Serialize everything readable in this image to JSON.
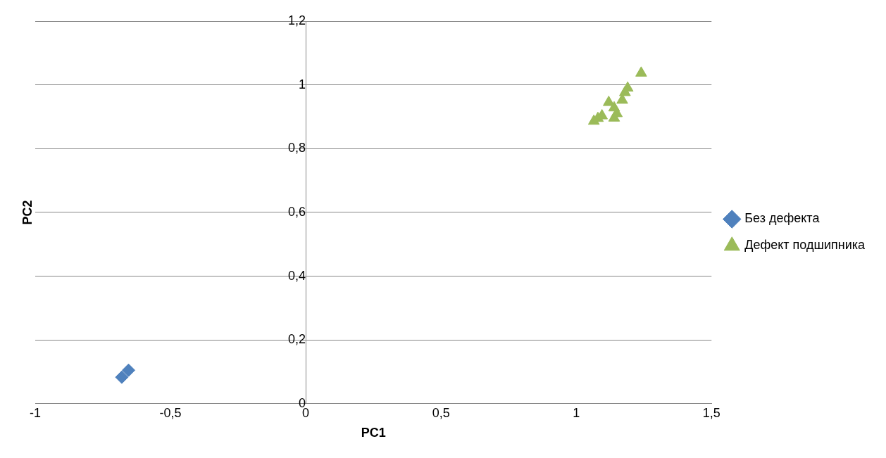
{
  "chart_data": {
    "type": "scatter",
    "xlabel": "PC1",
    "ylabel": "PC2",
    "xlim": [
      -1,
      1.5
    ],
    "xticks": [
      {
        "value": -1,
        "label": "-1"
      },
      {
        "value": -0.5,
        "label": "-0,5"
      },
      {
        "value": 0,
        "label": "0"
      },
      {
        "value": 0.5,
        "label": "0,5"
      },
      {
        "value": 1,
        "label": "1"
      },
      {
        "value": 1.5,
        "label": "1,5"
      }
    ],
    "ylim": [
      0,
      1.2
    ],
    "yticks": [
      {
        "value": 0,
        "label": "0"
      },
      {
        "value": 0.2,
        "label": "0,2"
      },
      {
        "value": 0.4,
        "label": "0,4"
      },
      {
        "value": 0.6,
        "label": "0,6"
      },
      {
        "value": 0.8,
        "label": "0,8"
      },
      {
        "value": 1,
        "label": "1"
      },
      {
        "value": 1.2,
        "label": "1,2"
      }
    ],
    "grid": "y",
    "legend": "right",
    "series": [
      {
        "name": "Без дефекта",
        "color": "#4f81bd",
        "marker": "diamond",
        "x": [
          -0.68,
          -0.655
        ],
        "values": [
          0.083,
          0.105
        ]
      },
      {
        "name": "Дефект подшипника",
        "color": "#9bbb59",
        "marker": "triangle",
        "x": [
          1.065,
          1.08,
          1.095,
          1.12,
          1.14,
          1.14,
          1.15,
          1.17,
          1.18,
          1.19,
          1.24
        ],
        "values": [
          0.886,
          0.895,
          0.903,
          0.945,
          0.928,
          0.896,
          0.91,
          0.952,
          0.976,
          0.99,
          1.037
        ]
      }
    ]
  }
}
